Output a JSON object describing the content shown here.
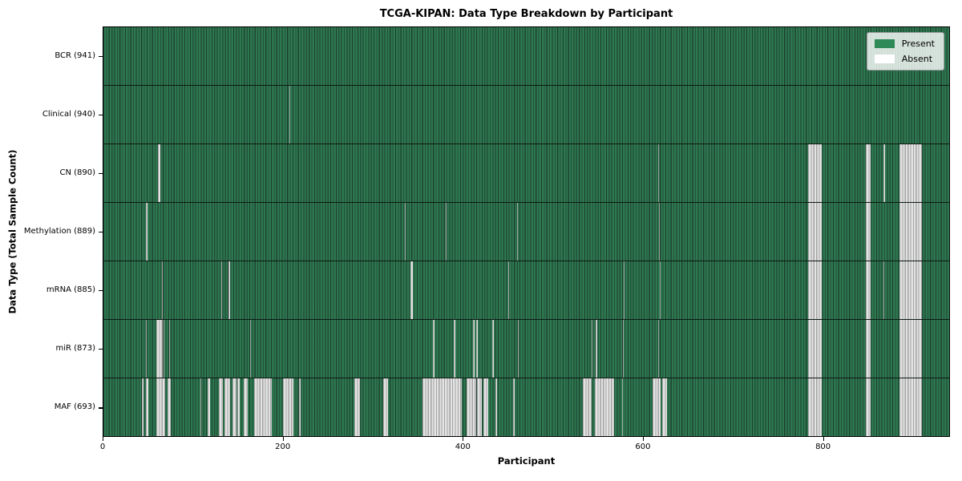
{
  "chart_data": {
    "type": "heatmap",
    "title": "TCGA-KIPAN: Data Type Breakdown by Participant",
    "xlabel": "Participant",
    "ylabel": "Data Type (Total Sample Count)",
    "n_participants": 941,
    "x_ticks": [
      0,
      200,
      400,
      600,
      800
    ],
    "grid": false,
    "legend_position": "upper right",
    "colors": {
      "present": "#2e8b57",
      "absent": "#ffffff",
      "row_divider": "#000000"
    },
    "legend": [
      {
        "label": "Present",
        "color": "#2e8b57"
      },
      {
        "label": "Absent",
        "color": "#ffffff"
      }
    ],
    "rows": [
      {
        "label": "BCR (941)",
        "data_type": "BCR",
        "total_samples": 941,
        "absent_ranges": []
      },
      {
        "label": "Clinical (940)",
        "data_type": "Clinical",
        "total_samples": 940,
        "absent_ranges": [
          [
            207,
            207
          ]
        ]
      },
      {
        "label": "CN (890)",
        "data_type": "CN",
        "total_samples": 890,
        "absent_ranges": [
          [
            61,
            62
          ],
          [
            617,
            617
          ],
          [
            784,
            798
          ],
          [
            848,
            853
          ],
          [
            868,
            869
          ],
          [
            886,
            910
          ]
        ]
      },
      {
        "label": "Methylation (889)",
        "data_type": "Methylation",
        "total_samples": 889,
        "absent_ranges": [
          [
            47,
            48
          ],
          [
            335,
            335
          ],
          [
            381,
            381
          ],
          [
            460,
            460
          ],
          [
            618,
            618
          ],
          [
            784,
            798
          ],
          [
            848,
            853
          ],
          [
            886,
            910
          ]
        ]
      },
      {
        "label": "mRNA (885)",
        "data_type": "mRNA",
        "total_samples": 885,
        "absent_ranges": [
          [
            65,
            65
          ],
          [
            131,
            131
          ],
          [
            139,
            140
          ],
          [
            342,
            343
          ],
          [
            450,
            450
          ],
          [
            579,
            579
          ],
          [
            619,
            619
          ],
          [
            784,
            798
          ],
          [
            848,
            853
          ],
          [
            868,
            868
          ],
          [
            886,
            910
          ]
        ]
      },
      {
        "label": "miR (873)",
        "data_type": "miR",
        "total_samples": 873,
        "absent_ranges": [
          [
            47,
            47
          ],
          [
            59,
            65
          ],
          [
            67,
            67
          ],
          [
            73,
            73
          ],
          [
            163,
            163
          ],
          [
            367,
            367
          ],
          [
            390,
            390
          ],
          [
            411,
            412
          ],
          [
            415,
            415
          ],
          [
            433,
            433
          ],
          [
            461,
            461
          ],
          [
            543,
            543
          ],
          [
            548,
            548
          ],
          [
            578,
            578
          ],
          [
            617,
            617
          ],
          [
            784,
            798
          ],
          [
            848,
            853
          ],
          [
            886,
            910
          ]
        ]
      },
      {
        "label": "MAF (693)",
        "data_type": "MAF",
        "total_samples": 693,
        "absent_ranges": [
          [
            43,
            43
          ],
          [
            47,
            49
          ],
          [
            59,
            68
          ],
          [
            71,
            74
          ],
          [
            108,
            108
          ],
          [
            116,
            118
          ],
          [
            128,
            132
          ],
          [
            135,
            140
          ],
          [
            144,
            147
          ],
          [
            149,
            151
          ],
          [
            156,
            160
          ],
          [
            168,
            186
          ],
          [
            200,
            210
          ],
          [
            218,
            218
          ],
          [
            279,
            284
          ],
          [
            311,
            316
          ],
          [
            355,
            398
          ],
          [
            404,
            414
          ],
          [
            416,
            420
          ],
          [
            423,
            427
          ],
          [
            436,
            437
          ],
          [
            456,
            456
          ],
          [
            533,
            542
          ],
          [
            547,
            567
          ],
          [
            577,
            577
          ],
          [
            611,
            619
          ],
          [
            622,
            626
          ],
          [
            784,
            798
          ],
          [
            848,
            853
          ],
          [
            886,
            910
          ]
        ]
      }
    ]
  }
}
